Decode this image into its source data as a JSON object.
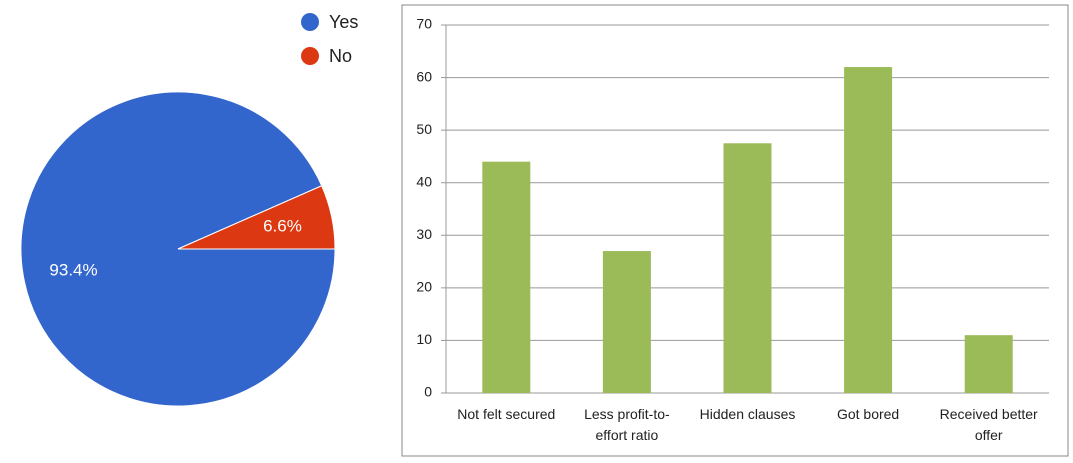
{
  "chart_data": [
    {
      "type": "pie",
      "categories": [
        "Yes",
        "No"
      ],
      "values": [
        93.4,
        6.6
      ],
      "value_labels": [
        "93.4%",
        "6.6%"
      ],
      "colors": [
        "#3366cc",
        "#dc3912"
      ]
    },
    {
      "type": "bar",
      "categories": [
        "Not felt secured",
        "Less profit-to-effort ratio",
        "Hidden clauses",
        "Got bored",
        "Received better offer"
      ],
      "values": [
        44,
        27,
        47.5,
        62,
        11
      ],
      "color": "#9bbb59",
      "ylim": [
        0,
        70
      ],
      "yticks": [
        0,
        10,
        20,
        30,
        40,
        50,
        60,
        70
      ],
      "grid": true
    }
  ]
}
